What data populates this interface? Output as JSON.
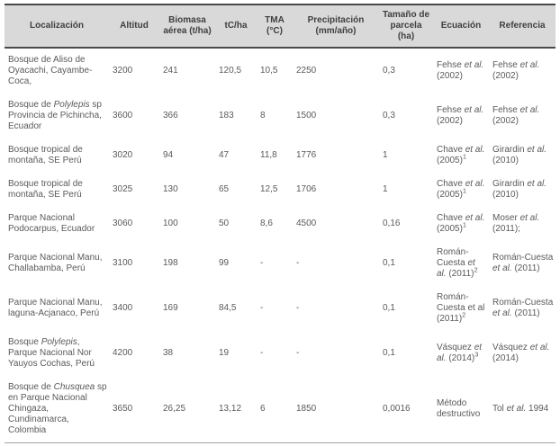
{
  "colors": {
    "header_bg": "#d9d9d9",
    "header_text": "#3f3f3f",
    "body_text": "#5a5a5a",
    "border_dark": "#4a4a4a",
    "border_light": "#a3a3a3",
    "page_bg": "#ffffff"
  },
  "table": {
    "headers": [
      "Localización",
      "Altitud",
      "Biomasa aérea (t/ha)",
      "tC/ha",
      "TMA (°C)",
      "Precipitación (mm/año)",
      "Tamaño de parcela (ha)",
      "Ecuación",
      "Referencia"
    ],
    "column_keys": [
      "localizacion",
      "altitud",
      "biomasa",
      "tc_ha",
      "tma",
      "precipitacion",
      "parcela",
      "ecuacion",
      "referencia"
    ],
    "rows": [
      {
        "localizacion": "Bosque de Aliso de Oyacachi, Cayambe-Coca,",
        "altitud": "3200",
        "biomasa": "241",
        "tc_ha": "120,5",
        "tma": "10,5",
        "precipitacion": "2250",
        "parcela": "0,3",
        "ecuacion": [
          {
            "t": "Fehse "
          },
          {
            "t": "et al.",
            "i": true
          },
          {
            "t": " (2002)"
          }
        ],
        "referencia": [
          {
            "t": "Fehse "
          },
          {
            "t": "et al.",
            "i": true
          },
          {
            "t": " (2002)"
          }
        ]
      },
      {
        "localizacion": [
          {
            "t": "Bosque de "
          },
          {
            "t": "Polylepis",
            "i": true
          },
          {
            "t": " sp Provincia de Pichincha, Ecuador"
          }
        ],
        "altitud": "3600",
        "biomasa": "366",
        "tc_ha": "183",
        "tma": "8",
        "precipitacion": "1500",
        "parcela": "0,3",
        "ecuacion": [
          {
            "t": "Fehse "
          },
          {
            "t": "et al.",
            "i": true
          },
          {
            "t": " (2002)"
          }
        ],
        "referencia": [
          {
            "t": "Fehse "
          },
          {
            "t": "et al.",
            "i": true
          },
          {
            "t": " (2002)"
          }
        ]
      },
      {
        "localizacion": "Bosque tropical de montaña, SE Perú",
        "altitud": "3020",
        "biomasa": "94",
        "tc_ha": "47",
        "tma": "11,8",
        "precipitacion": "1776",
        "parcela": "1",
        "ecuacion": [
          {
            "t": "Chave "
          },
          {
            "t": "et al.",
            "i": true
          },
          {
            "t": " (2005)"
          },
          {
            "t": "1",
            "sup": true
          }
        ],
        "referencia": [
          {
            "t": "Girardin "
          },
          {
            "t": "et al.",
            "i": true
          },
          {
            "t": " (2010)"
          }
        ]
      },
      {
        "localizacion": "Bosque tropical de montaña, SE Perú",
        "altitud": "3025",
        "biomasa": "130",
        "tc_ha": "65",
        "tma": "12,5",
        "precipitacion": "1706",
        "parcela": "1",
        "ecuacion": [
          {
            "t": "Chave "
          },
          {
            "t": "et al.",
            "i": true
          },
          {
            "t": " (2005)"
          },
          {
            "t": "1",
            "sup": true
          }
        ],
        "referencia": [
          {
            "t": "Girardin "
          },
          {
            "t": "et al.",
            "i": true
          },
          {
            "t": " (2010)"
          }
        ]
      },
      {
        "localizacion": "Parque Nacional Podocarpus, Ecuador",
        "altitud": "3060",
        "biomasa": "100",
        "tc_ha": "50",
        "tma": "8,6",
        "precipitacion": "4500",
        "parcela": "0,16",
        "ecuacion": [
          {
            "t": "Chave "
          },
          {
            "t": "et al.",
            "i": true
          },
          {
            "t": " (2005)"
          },
          {
            "t": "1",
            "sup": true
          }
        ],
        "referencia": [
          {
            "t": "Moser "
          },
          {
            "t": "et al.",
            "i": true
          },
          {
            "t": " (2011);"
          }
        ]
      },
      {
        "localizacion": "Parque Nacional Manu, Challabamba, Perú",
        "altitud": "3100",
        "biomasa": "198",
        "tc_ha": "99",
        "tma": "-",
        "precipitacion": "-",
        "parcela": "0,1",
        "ecuacion": [
          {
            "t": "Román-Cuesta "
          },
          {
            "t": "et al.",
            "i": true
          },
          {
            "t": " (2011)"
          },
          {
            "t": "2",
            "sup": true
          }
        ],
        "referencia": [
          {
            "t": "Román-Cuesta "
          },
          {
            "t": "et al.",
            "i": true
          },
          {
            "t": " (2011)"
          }
        ]
      },
      {
        "localizacion": "Parque Nacional Manu, laguna-Acjanaco, Perú",
        "altitud": "3400",
        "biomasa": "169",
        "tc_ha": "84,5",
        "tma": "-",
        "precipitacion": "-",
        "parcela": "0,1",
        "ecuacion": [
          {
            "t": "Román-Cuesta et al (2011)"
          },
          {
            "t": "2",
            "sup": true
          }
        ],
        "referencia": [
          {
            "t": "Román-Cuesta "
          },
          {
            "t": "et al.",
            "i": true
          },
          {
            "t": " (2011)"
          }
        ]
      },
      {
        "localizacion": [
          {
            "t": "Bosque "
          },
          {
            "t": "Polylepis",
            "i": true
          },
          {
            "t": ", Parque Nacional Nor Yauyos Cochas, Perú"
          }
        ],
        "altitud": "4200",
        "biomasa": "38",
        "tc_ha": "19",
        "tma": "-",
        "precipitacion": "-",
        "parcela": "0,1",
        "ecuacion": [
          {
            "t": "Vásquez "
          },
          {
            "t": "et al.",
            "i": true
          },
          {
            "t": " (2014)"
          },
          {
            "t": "3",
            "sup": true
          }
        ],
        "referencia": [
          {
            "t": "Vásquez "
          },
          {
            "t": "et al.",
            "i": true
          },
          {
            "t": " (2014)"
          }
        ]
      },
      {
        "localizacion": [
          {
            "t": "Bosque de "
          },
          {
            "t": "Chusquea",
            "i": true
          },
          {
            "t": " sp en Parque Nacional Chingaza, Cundinamarca, Colombia"
          }
        ],
        "altitud": "3650",
        "biomasa": "26,25",
        "tc_ha": "13,12",
        "tma": "6",
        "precipitacion": "1850",
        "parcela": "0,0016",
        "ecuacion": "Método destructivo",
        "referencia": [
          {
            "t": "Tol "
          },
          {
            "t": "et al.",
            "i": true
          },
          {
            "t": " 1994"
          }
        ]
      }
    ]
  }
}
